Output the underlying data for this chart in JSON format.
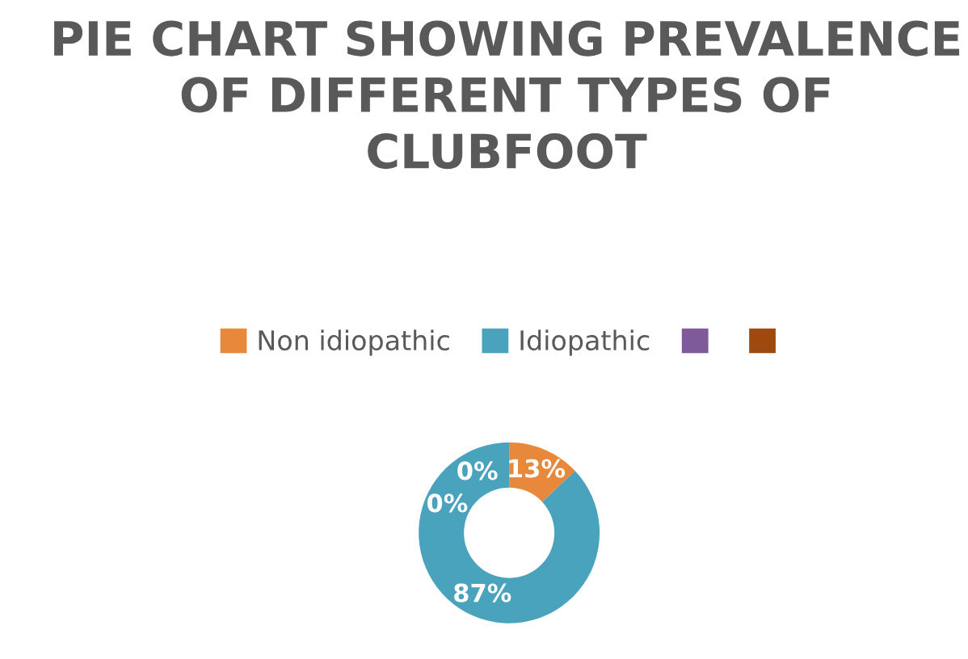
{
  "chart_data": {
    "type": "donut",
    "title": "PIE CHART SHOWING PREVALENCE OF DIFFERENT TYPES OF CLUBFOOT",
    "categories": [
      "Non idiopathic",
      "Idiopathic",
      null,
      null
    ],
    "values": [
      13,
      87,
      0,
      0
    ],
    "colors": [
      "#e8883a",
      "#4aa3bd",
      "#7e5a9b",
      "#a0490f"
    ],
    "value_labels": [
      "13%",
      "87%",
      "0%",
      "0%"
    ],
    "legend": "top"
  }
}
